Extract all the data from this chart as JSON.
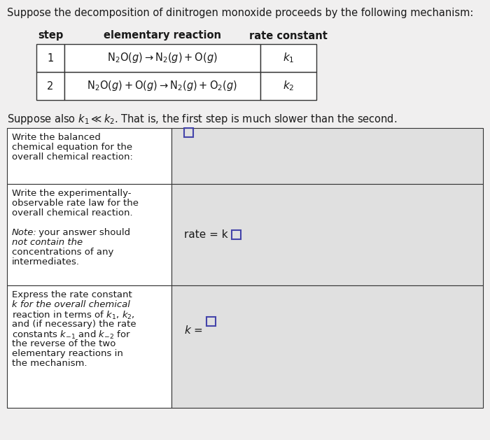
{
  "bg_color": "#f0efef",
  "white": "#ffffff",
  "light_gray": "#e0e0e0",
  "border_color": "#555555",
  "text_color": "#1a1a1a",
  "title_text": "Suppose the decomposition of dinitrogen monoxide proceeds by the following mechanism:",
  "step_header": "step",
  "reaction_header": "elementary reaction",
  "rate_header": "rate constant",
  "row1_step": "1",
  "row1_reaction": "$\\mathrm{N_2O}(g) \\rightarrow \\mathrm{N_2}(g) + \\mathrm{O}(g)$",
  "row1_k": "$k_1$",
  "row2_step": "2",
  "row2_reaction": "$\\mathrm{N_2O}(g) + \\mathrm{O}(g) \\rightarrow \\mathrm{N_2}(g) + \\mathrm{O_2}(g)$",
  "row2_k": "$k_2$",
  "suppose_text": "Suppose also $k_1 \\ll k_2$. That is, the first step is much slower than the second.",
  "q1_left_line1": "Write the balanced",
  "q1_left_line2": "chemical equation for the",
  "q1_left_line3": "overall chemical reaction:",
  "q2_left_line1": "Write the experimentally-",
  "q2_left_line2": "observable rate law for the",
  "q2_left_line3": "overall chemical reaction.",
  "q2_note_line1": "Note: your answer should",
  "q2_note_line2": "not contain the",
  "q2_note_line3": "concentrations of any",
  "q2_note_line4": "intermediates.",
  "q3_left_line1": "Express the rate constant",
  "q3_left_line2": "k for the overall chemical",
  "q3_left_line3": "reaction in terms of $k_1$, $k_2$,",
  "q3_left_line4": "and (if necessary) the rate",
  "q3_left_line5": "constants $k_{-1}$ and $k_{-2}$ for",
  "q3_left_line6": "the reverse of the two",
  "q3_left_line7": "elementary reactions in",
  "q3_left_line8": "the mechanism.",
  "answer_box_color": "#4444aa",
  "rate_text": "rate = k",
  "k_text": "k ="
}
